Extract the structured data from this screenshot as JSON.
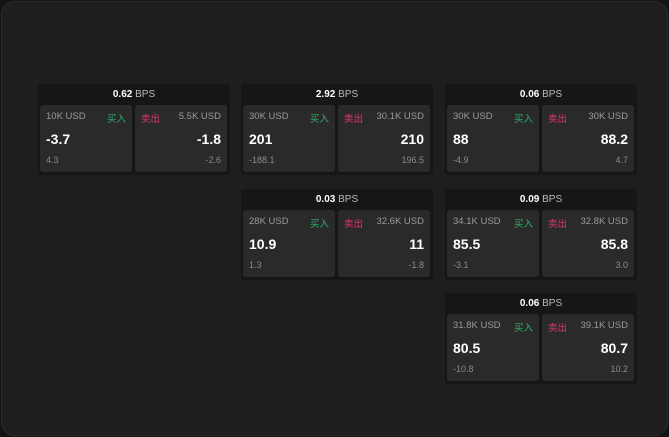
{
  "labels": {
    "buy": "买入",
    "sell": "卖出",
    "unit": "BPS"
  },
  "widgets": [
    {
      "spread": "0.62",
      "bid": {
        "size": "10K USD",
        "price": "-3.7",
        "change": "4.3"
      },
      "ask": {
        "size": "5.5K USD",
        "price": "-1.8",
        "change": "-2.6"
      }
    },
    {
      "spread": "2.92",
      "bid": {
        "size": "30K USD",
        "price": "201",
        "change": "-188.1"
      },
      "ask": {
        "size": "30.1K USD",
        "price": "210",
        "change": "196.5"
      }
    },
    {
      "spread": "0.06",
      "bid": {
        "size": "30K USD",
        "price": "88",
        "change": "-4.9"
      },
      "ask": {
        "size": "30K USD",
        "price": "88.2",
        "change": "4.7"
      }
    },
    {
      "spread": "0.03",
      "bid": {
        "size": "28K USD",
        "price": "10.9",
        "change": "1.3"
      },
      "ask": {
        "size": "32.6K USD",
        "price": "11",
        "change": "-1.8"
      }
    },
    {
      "spread": "0.09",
      "bid": {
        "size": "34.1K USD",
        "price": "85.5",
        "change": "-3.1"
      },
      "ask": {
        "size": "32.8K USD",
        "price": "85.8",
        "change": "3.0"
      }
    },
    {
      "spread": "0.06",
      "bid": {
        "size": "31.8K USD",
        "price": "80.5",
        "change": "-10.8"
      },
      "ask": {
        "size": "39.1K USD",
        "price": "80.7",
        "change": "10.2"
      }
    }
  ]
}
